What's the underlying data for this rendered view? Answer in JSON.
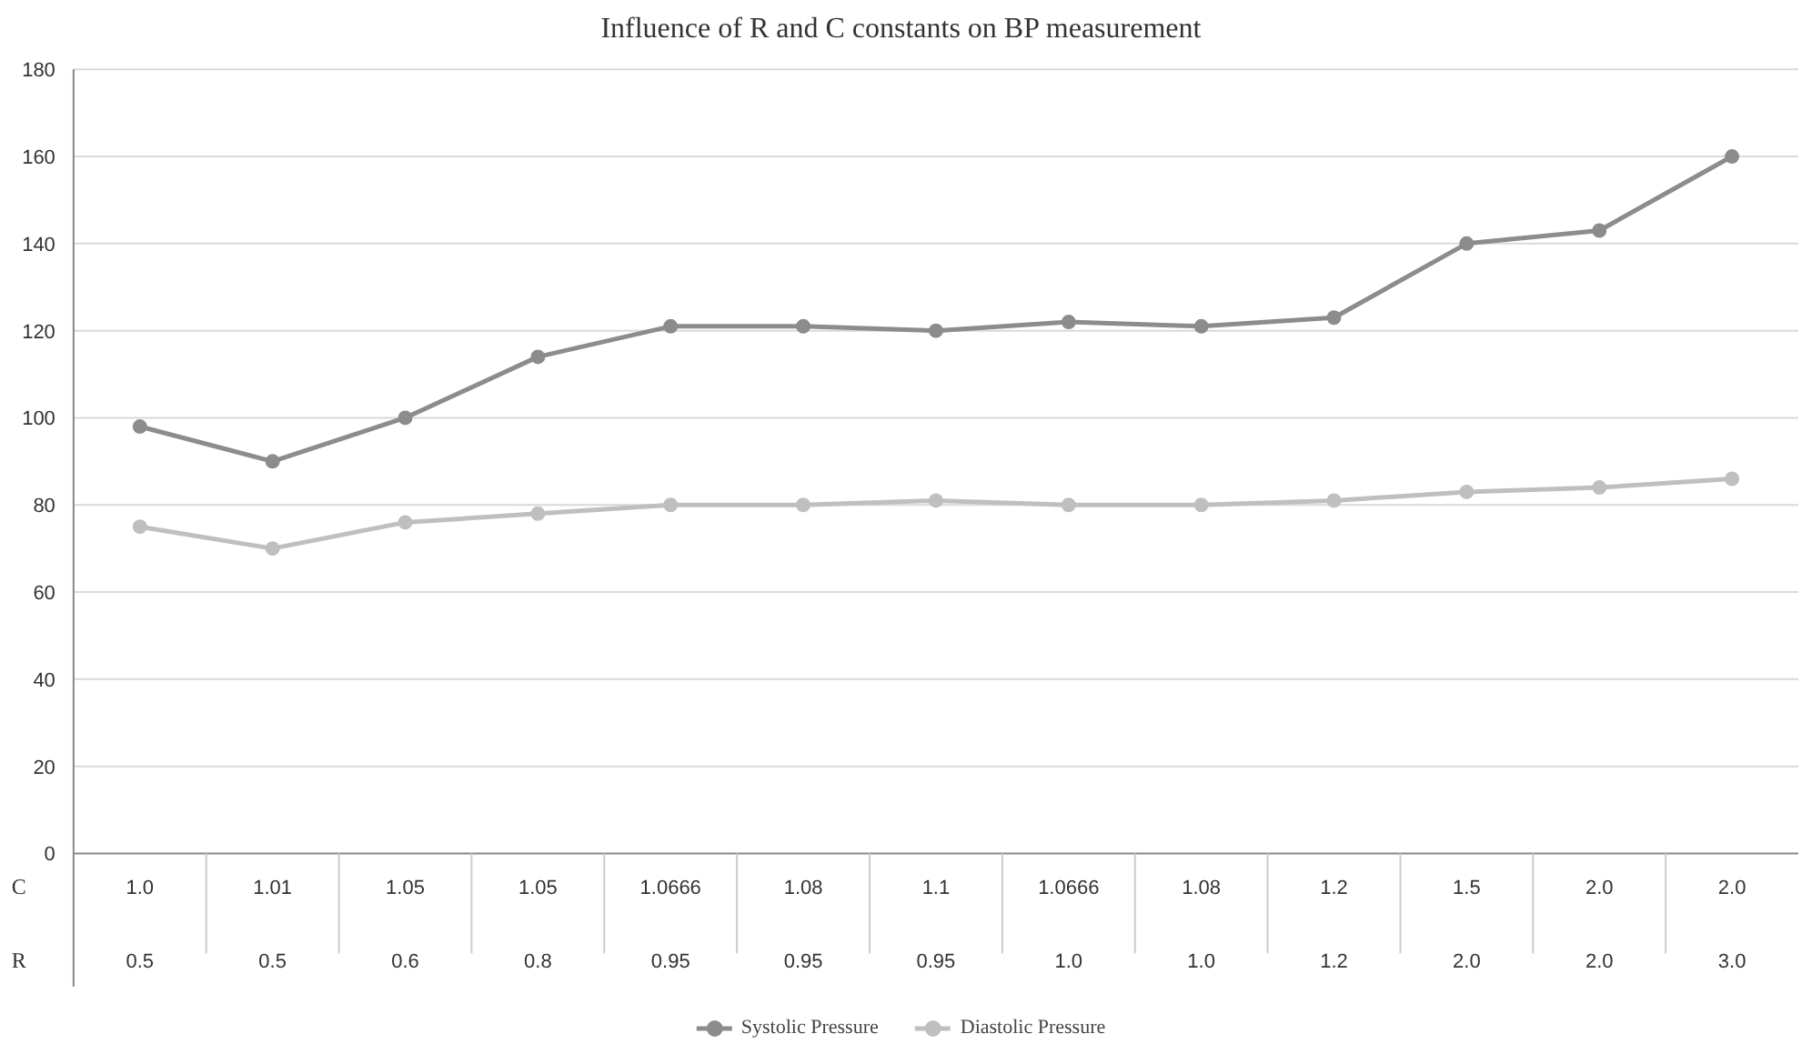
{
  "chart_data": {
    "type": "line",
    "title": "Influence of R and C constants on BP measurement",
    "categories": [
      "1.0\n0.5",
      "1.01\n0.5",
      "1.05\n0.6",
      "1.05\n0.8",
      "1.0666\n0.95",
      "1.08\n0.95",
      "1.1\n0.95",
      "1.0666\n1.0",
      "1.08\n1.0",
      "1.2\n1.2",
      "1.5\n2.0",
      "2.0\n2.0",
      "2.0\n3.0"
    ],
    "series": [
      {
        "name": "Systolic Pressure",
        "color": "#8c8c8c",
        "values": [
          98,
          90,
          100,
          114,
          121,
          121,
          120,
          122,
          121,
          123,
          140,
          143,
          160
        ]
      },
      {
        "name": "Diastolic Pressure",
        "color": "#bfbfbf",
        "values": [
          75,
          70,
          76,
          78,
          80,
          80,
          81,
          80,
          80,
          81,
          83,
          84,
          86
        ]
      }
    ],
    "annotations": [
      "C",
      "R"
    ],
    "ylim": [
      0,
      180
    ],
    "yticks": [
      0,
      20,
      40,
      60,
      80,
      100,
      120,
      140,
      160,
      180
    ],
    "grid": "y",
    "legend": "bottom",
    "marker": "circle",
    "line_style": "solid"
  }
}
